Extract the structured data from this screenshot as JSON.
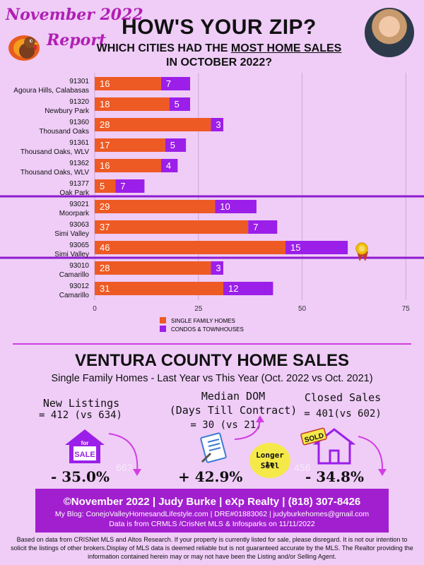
{
  "header": {
    "report_line1": "November 2022",
    "report_line2": "Report",
    "title": "HOW'S YOUR ZIP?",
    "subtitle_before": "WHICH CITIES HAD THE ",
    "subtitle_underlined": "MOST HOME SALES",
    "subtitle_line2": "IN OCTOBER 2022?"
  },
  "colors": {
    "background": "#efcdf7",
    "single_family": "#ee5a24",
    "condos": "#9b1fe8",
    "divider": "#8e1ccf",
    "footer": "#a21fcf"
  },
  "chart_data": {
    "type": "bar",
    "orientation": "horizontal",
    "stacked": true,
    "categories": [
      {
        "zip": "91301",
        "city": "Agoura Hills, Calabasas"
      },
      {
        "zip": "91320",
        "city": "Newbury Park"
      },
      {
        "zip": "91360",
        "city": "Thousand Oaks"
      },
      {
        "zip": "91361",
        "city": "Thousand Oaks, WLV"
      },
      {
        "zip": "91362",
        "city": "Thousand Oaks, WLV"
      },
      {
        "zip": "91377",
        "city": "Oak Park"
      },
      {
        "zip": "93021",
        "city": "Moorpark"
      },
      {
        "zip": "93063",
        "city": "Simi Valley"
      },
      {
        "zip": "93065",
        "city": "Simi Valley"
      },
      {
        "zip": "93010",
        "city": "Camarillo"
      },
      {
        "zip": "93012",
        "city": "Camarillo"
      }
    ],
    "series": [
      {
        "name": "SINGLE FAMILY HOMES",
        "values": [
          16,
          18,
          28,
          17,
          16,
          5,
          29,
          37,
          46,
          28,
          31
        ]
      },
      {
        "name": "CONDOS & TOWNHOUSES",
        "values": [
          7,
          5,
          3,
          5,
          4,
          7,
          10,
          7,
          15,
          3,
          12
        ]
      }
    ],
    "xlim": [
      0,
      80
    ],
    "xticks": [
      "0",
      "25",
      "50",
      "75"
    ],
    "gridlines": true,
    "group_dividers_after": [
      5,
      8
    ],
    "highlight_index": 8,
    "legend_position": "bottom-center"
  },
  "county": {
    "title": "VENTURA COUNTY HOME SALES",
    "subtitle": "Single Family Homes - Last Year vs This Year (Oct. 2022 vs Oct. 2021)"
  },
  "stats": {
    "new_listings": {
      "label": "New Listings",
      "value": "= 412 (vs 634)",
      "change": "- 35.0%",
      "ghost": "66?"
    },
    "median_dom": {
      "label_line1": "Median DOM",
      "label_line2": "(Days Till Contract)",
      "value": "= 30 (vs 21)",
      "change": "+ 42.9%"
    },
    "closed_sales": {
      "label": "Closed Sales",
      "value": "= 401(vs 602)",
      "change": "- 34.8%",
      "ghost": "456"
    },
    "callout": {
      "line1": "Longer to",
      "line2": "Sell"
    },
    "for_sale_sign": {
      "line1": "for",
      "line2": "SALE"
    },
    "sold_sign": "SOLD"
  },
  "footer": {
    "line1": "©November 2022  |  Judy Burke  |  eXp Realty  |  (818) 307-8426",
    "line2": "My Blog: ConejoValleyHomesandLifestyle.com  |  DRE#01883062  |  judyburkehomes@gmail.com",
    "line3": "Data is from CRMLS /CrisNet MLS & Infosparks on 11/11/2022"
  },
  "disclaimer": "Based on data from CRISNet MLS and Altos Research. If your property is currently listed for sale, please disregard. It is not our intention to solicit the listings of other brokers.Display of MLS data is deemed reliable but is not guaranteed accurate by the MLS. The Realtor providing the information contained herein may or may not have been the Listing and/or Selling Agent."
}
